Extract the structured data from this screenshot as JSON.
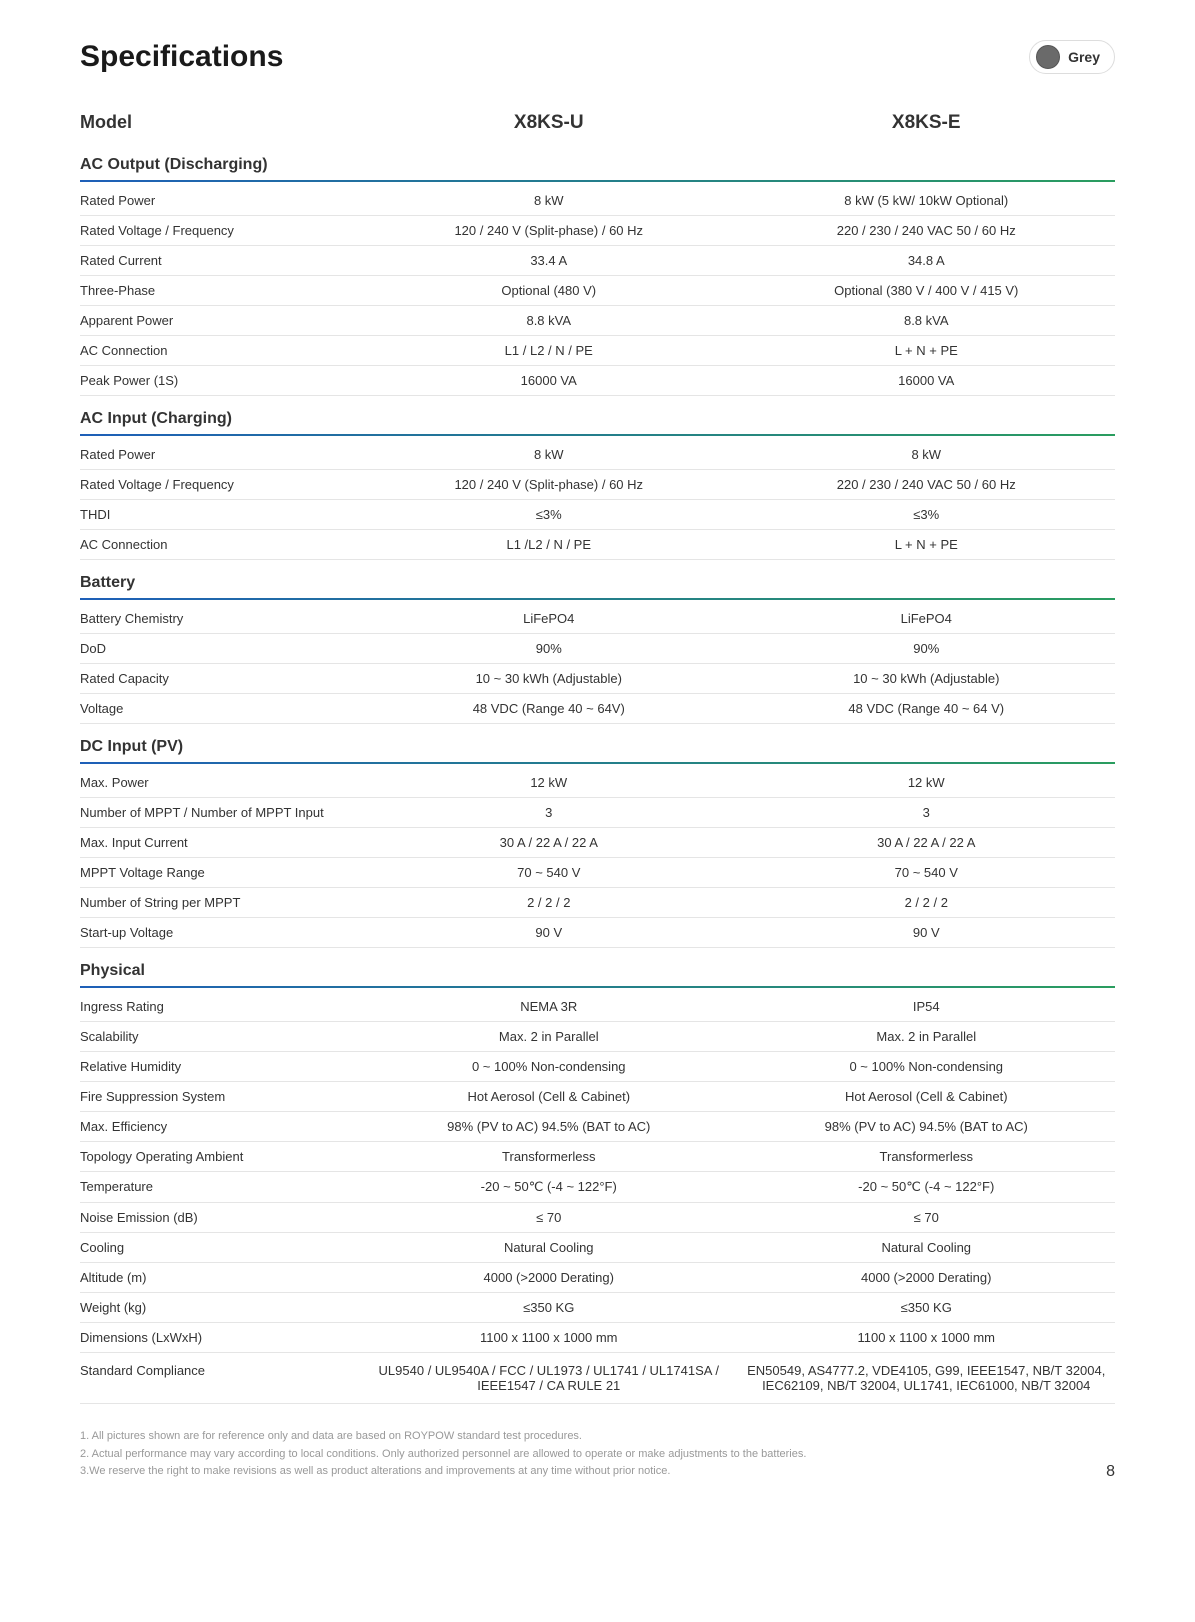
{
  "title": "Specifications",
  "colorBadge": {
    "label": "Grey",
    "color": "#6a6a6a"
  },
  "pageNumber": "8",
  "modelHeader": {
    "label": "Model",
    "col1": "X8KS-U",
    "col2": "X8KS-E"
  },
  "sections": [
    {
      "title": "AC Output (Discharging)",
      "rows": [
        {
          "label": "Rated Power",
          "c1": "8 kW",
          "c2": "8 kW (5 kW/ 10kW Optional)"
        },
        {
          "label": "Rated Voltage / Frequency",
          "c1": "120 / 240 V (Split-phase) / 60 Hz",
          "c2": "220 / 230 / 240 VAC    50 / 60 Hz"
        },
        {
          "label": "Rated Current",
          "c1": "33.4 A",
          "c2": "34.8 A"
        },
        {
          "label": "Three-Phase",
          "c1": "Optional (480 V)",
          "c2": "Optional (380 V / 400 V / 415 V)"
        },
        {
          "label": "Apparent Power",
          "c1": "8.8 kVA",
          "c2": "8.8 kVA"
        },
        {
          "label": "AC Connection",
          "c1": "L1 / L2 / N / PE",
          "c2": "L + N + PE"
        },
        {
          "label": "Peak Power (1S)",
          "c1": "16000 VA",
          "c2": "16000 VA"
        }
      ]
    },
    {
      "title": "AC Input (Charging)",
      "rows": [
        {
          "label": "Rated Power",
          "c1": "8 kW",
          "c2": "8 kW"
        },
        {
          "label": "Rated Voltage / Frequency",
          "c1": "120 / 240 V (Split-phase) / 60 Hz",
          "c2": "220 / 230 / 240 VAC    50 / 60 Hz"
        },
        {
          "label": "THDI",
          "c1": "≤3%",
          "c2": "≤3%"
        },
        {
          "label": "AC Connection",
          "c1": "L1 /L2 / N / PE",
          "c2": "L + N + PE"
        }
      ]
    },
    {
      "title": "Battery",
      "rows": [
        {
          "label": "Battery Chemistry",
          "c1": "LiFePO4",
          "c2": "LiFePO4"
        },
        {
          "label": "DoD",
          "c1": "90%",
          "c2": "90%"
        },
        {
          "label": "Rated Capacity",
          "c1": "10 ~ 30 kWh (Adjustable)",
          "c2": "10 ~ 30 kWh (Adjustable)"
        },
        {
          "label": "Voltage",
          "c1": "48 VDC (Range 40 ~ 64V)",
          "c2": "48 VDC (Range 40 ~ 64 V)"
        }
      ]
    },
    {
      "title": "DC Input (PV)",
      "rows": [
        {
          "label": "Max. Power",
          "c1": "12 kW",
          "c2": "12 kW"
        },
        {
          "label": "Number of MPPT / Number of MPPT Input",
          "c1": "3",
          "c2": "3"
        },
        {
          "label": "Max. Input Current",
          "c1": "30 A / 22 A / 22 A",
          "c2": "30 A / 22 A / 22 A"
        },
        {
          "label": "MPPT Voltage Range",
          "c1": "70 ~  540 V",
          "c2": "70 ~  540 V"
        },
        {
          "label": "Number of String per MPPT",
          "c1": "2 / 2 / 2",
          "c2": "2 / 2 / 2"
        },
        {
          "label": "Start-up Voltage",
          "c1": "90 V",
          "c2": "90 V"
        }
      ]
    },
    {
      "title": "Physical",
      "rows": [
        {
          "label": "Ingress Rating",
          "c1": "NEMA 3R",
          "c2": "IP54"
        },
        {
          "label": "Scalability",
          "c1": "Max. 2 in Parallel",
          "c2": "Max. 2 in Parallel"
        },
        {
          "label": "Relative Humidity",
          "c1": "0 ~ 100% Non-condensing",
          "c2": "0 ~ 100% Non-condensing"
        },
        {
          "label": "Fire Suppression System",
          "c1": "Hot Aerosol (Cell & Cabinet)",
          "c2": "Hot Aerosol (Cell & Cabinet)"
        },
        {
          "label": "Max. Efficiency",
          "c1": "98% (PV to AC) 94.5% (BAT to AC)",
          "c2": "98% (PV to AC) 94.5% (BAT to AC)"
        },
        {
          "label": "Topology Operating Ambient",
          "c1": "Transformerless",
          "c2": "Transformerless"
        },
        {
          "label": "Temperature",
          "c1": "-20 ~ 50℃ (-4 ~ 122°F)",
          "c2": "-20 ~ 50℃ (-4 ~ 122°F)"
        },
        {
          "label": "Noise Emission (dB)",
          "c1": "≤ 70",
          "c2": "≤ 70"
        },
        {
          "label": "Cooling",
          "c1": "Natural Cooling",
          "c2": "Natural Cooling"
        },
        {
          "label": "Altitude (m)",
          "c1": "4000 (>2000 Derating)",
          "c2": "4000 (>2000 Derating)"
        },
        {
          "label": "Weight (kg)",
          "c1": "≤350  KG",
          "c2": "≤350  KG"
        },
        {
          "label": "Dimensions (LxWxH)",
          "c1": "1100 x 1100 x 1000 mm",
          "c2": "1100 x 1100 x 1000 mm"
        },
        {
          "label": "Standard Compliance",
          "c1": "UL9540 / UL9540A / FCC / UL1973 / UL1741 / UL1741SA / IEEE1547 / CA RULE 21",
          "c2": "EN50549, AS4777.2, VDE4105, G99, IEEE1547, NB/T 32004, IEC62109, NB/T 32004, UL1741, IEC61000, NB/T 32004",
          "tall": true
        }
      ]
    }
  ],
  "footnotes": [
    "1. All pictures shown are for reference only and data are based on ROYPOW standard test procedures.",
    "2. Actual performance may vary according to local conditions. Only authorized personnel are allowed to operate or make adjustments to the batteries.",
    "3.We reserve the right to make revisions as well as product alterations and improvements at any time without prior notice."
  ]
}
